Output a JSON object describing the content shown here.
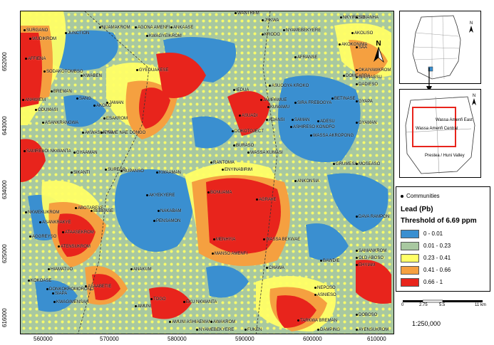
{
  "map": {
    "y_ticks": [
      "652000",
      "643000",
      "634000",
      "625000",
      "616000"
    ],
    "x_ticks": [
      "560000",
      "570000",
      "580000",
      "590000",
      "600000",
      "610000"
    ],
    "towns": [
      {
        "name": "SURGANO"
      },
      {
        "name": "WUDIKROM"
      },
      {
        "name": "JUNCTION"
      },
      {
        "name": "AFFIENA"
      },
      {
        "name": "SODAKOTOMBSO"
      },
      {
        "name": "KWABEN"
      },
      {
        "name": "BREMAN"
      },
      {
        "name": "ANHWIEM"
      },
      {
        "name": "SANG"
      },
      {
        "name": "ODUMASI"
      },
      {
        "name": "ASANKRANGWA"
      },
      {
        "name": "AKOKO"
      },
      {
        "name": "JAMAN"
      },
      {
        "name": "ESAKROM"
      },
      {
        "name": "AKWASI ATRA"
      },
      {
        "name": "NYAME NAE DONGO"
      },
      {
        "name": "SAMREBOI NKWANTA"
      },
      {
        "name": "GYAAMAN"
      },
      {
        "name": "SIKANTI"
      },
      {
        "name": "SURESO"
      },
      {
        "name": "SUPANSO"
      },
      {
        "name": "KWAAMAN"
      },
      {
        "name": "NUAMAKROM"
      },
      {
        "name": "AGONA AMENFI"
      },
      {
        "name": "ANKAASE"
      },
      {
        "name": "KWAGYEIKROM"
      },
      {
        "name": "GYEDUAKESE"
      },
      {
        "name": "WANTREM"
      },
      {
        "name": "JSKWA"
      },
      {
        "name": "KRODO"
      },
      {
        "name": "NYAMEBEKYERE"
      },
      {
        "name": "NKYIRESO"
      },
      {
        "name": "SIBIANHA"
      },
      {
        "name": "AKOLISO"
      },
      {
        "name": "AKOKONIMA"
      },
      {
        "name": "SAA"
      },
      {
        "name": "AFRANSE"
      },
      {
        "name": "OKAIYAWKROM"
      },
      {
        "name": "ABENABSU"
      },
      {
        "name": "DOMEABRA"
      },
      {
        "name": "DADIESO"
      },
      {
        "name": "IEDUA"
      },
      {
        "name": "ASUOGYA KROKO"
      },
      {
        "name": "JAMPAWUE"
      },
      {
        "name": "KUMAWU"
      },
      {
        "name": "SIRA FREBOGYA"
      },
      {
        "name": "BETINASE"
      },
      {
        "name": "GYAPA"
      },
      {
        "name": "ADANSI"
      },
      {
        "name": "ASUADI"
      },
      {
        "name": "SAMAN"
      },
      {
        "name": "ADESU"
      },
      {
        "name": "GYAMAN"
      },
      {
        "name": "ASHIRESO KONOFO"
      },
      {
        "name": "DOKOTOJECT"
      },
      {
        "name": "WASSA AKROPONG"
      },
      {
        "name": "BURASO"
      },
      {
        "name": "WASSA KUMASI"
      },
      {
        "name": "RANTOMA"
      },
      {
        "name": "ENYINABIRIM"
      },
      {
        "name": "GRUMESA"
      },
      {
        "name": "MOSEASO"
      },
      {
        "name": "BONUAMA"
      },
      {
        "name": "ANKONSIA"
      },
      {
        "name": "AGRAVE"
      },
      {
        "name": "DAVA RAMPON"
      },
      {
        "name": "NKWEKUKROM"
      },
      {
        "name": "ABOTAREYE"
      },
      {
        "name": "BEBEASE"
      },
      {
        "name": "AKYEKYERE"
      },
      {
        "name": "NAKABAM"
      },
      {
        "name": "PENSAMON"
      },
      {
        "name": "ASANKRAKYE"
      },
      {
        "name": "ATAASEKROM"
      },
      {
        "name": "AGGREYSO"
      },
      {
        "name": "MENHYIA"
      },
      {
        "name": "WASSA BEKWAE"
      },
      {
        "name": "ATENSUKROM"
      },
      {
        "name": "SAMANKROM"
      },
      {
        "name": "OLD ABOSO"
      },
      {
        "name": "EHYIAM"
      },
      {
        "name": "MANSO AMENFI"
      },
      {
        "name": "BAWDIE"
      },
      {
        "name": "HIAMATUO"
      },
      {
        "name": "ANAKUM"
      },
      {
        "name": "CHAWA"
      },
      {
        "name": "KOKOASE"
      },
      {
        "name": "DONKOKROMORONO"
      },
      {
        "name": "SIAPA"
      },
      {
        "name": "ASAABETIE"
      },
      {
        "name": "KWAGIMENSAH"
      },
      {
        "name": "TOGO"
      },
      {
        "name": "EKU NKWANTA"
      },
      {
        "name": "AMUNI"
      },
      {
        "name": "NEPOSO"
      },
      {
        "name": "ASNIESO"
      },
      {
        "name": "AMUNI ASHIAEMAN"
      },
      {
        "name": "AWAKROM"
      },
      {
        "name": "NYAMEBEKYERE"
      },
      {
        "name": "FUKEN"
      },
      {
        "name": "TARKWA BREMAN"
      },
      {
        "name": "DOBOSO"
      },
      {
        "name": "DAMPING"
      },
      {
        "name": "AYENSUKROM"
      }
    ]
  },
  "inset_district": {
    "labels": [
      "Wassa Amenfi East",
      "Wassa Amenfi Central",
      "Prestea / Huni Valley"
    ]
  },
  "legend": {
    "communities_label": "Communities",
    "title": "Lead (Pb)",
    "subtitle": "Threshold of 6.69 ppm",
    "classes": [
      {
        "label": "0 - 0.01",
        "color": "#3a8fd0"
      },
      {
        "label": "0.01 - 0.23",
        "color": "#a8c8a0"
      },
      {
        "label": "0.23 - 0.41",
        "color": "#ffff66"
      },
      {
        "label": "0.41 - 0.66",
        "color": "#f5a040"
      },
      {
        "label": "0.66 - 1",
        "color": "#e8241c"
      }
    ]
  },
  "scalebar": {
    "ticks": [
      "0",
      "2.75",
      "5.5",
      "11 km"
    ],
    "scale_text": "1:250,000"
  },
  "north_label": "N"
}
